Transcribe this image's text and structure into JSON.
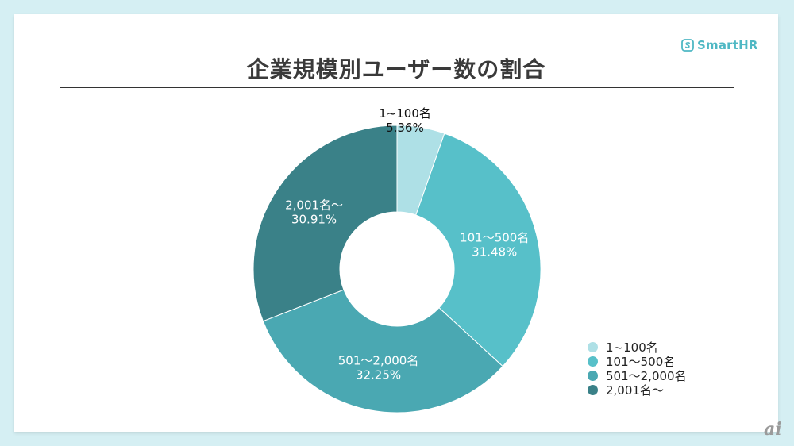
{
  "title": "企業規模別ユーザー数の割合",
  "logo": {
    "text": "SmartHR",
    "icon": "smarthr-logo-icon",
    "color": "#4fb8c4"
  },
  "corner_mark": "ai",
  "chart_data": {
    "type": "pie",
    "donut": true,
    "title": "企業規模別ユーザー数の割合",
    "legend_position": "bottom-right",
    "categories": [
      "1~100名",
      "101～500名",
      "501～2,000名",
      "2,001名～"
    ],
    "values": [
      5.36,
      31.48,
      32.25,
      30.91
    ],
    "data_labels": [
      [
        "1~100名",
        "5.36%"
      ],
      [
        "101～500名",
        "31.48%"
      ],
      [
        "501～2,000名",
        "32.25%"
      ],
      [
        "2,001名～",
        "30.91%"
      ]
    ],
    "colors": [
      "#aee0e6",
      "#57c0c9",
      "#4aa8b2",
      "#3a8188"
    ]
  }
}
